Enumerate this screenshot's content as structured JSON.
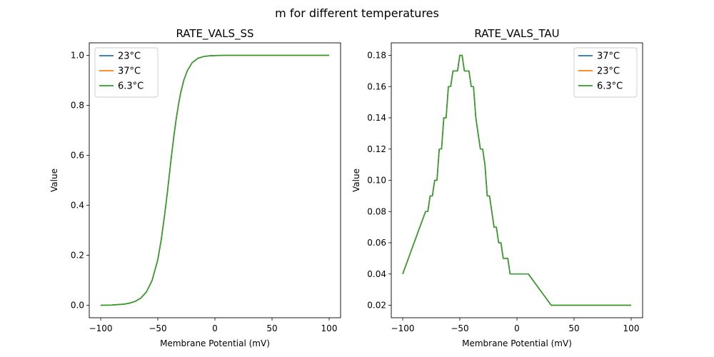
{
  "figure": {
    "suptitle": "m for different temperatures"
  },
  "chart_data": [
    {
      "type": "line",
      "title": "RATE_VALS_SS",
      "xlabel": "Membrane Potential (mV)",
      "ylabel": "Value",
      "xlim": [
        -110,
        110
      ],
      "ylim": [
        -0.05,
        1.05
      ],
      "xticks": [
        -100,
        -50,
        0,
        50,
        100
      ],
      "xtick_labels": [
        "−100",
        "−50",
        "0",
        "50",
        "100"
      ],
      "yticks": [
        0.0,
        0.2,
        0.4,
        0.6,
        0.8,
        1.0
      ],
      "ytick_labels": [
        "0.0",
        "0.2",
        "0.4",
        "0.6",
        "0.8",
        "1.0"
      ],
      "grid": false,
      "legend_position": "upper-left",
      "x": [
        -100,
        -90,
        -80,
        -75,
        -70,
        -65,
        -60,
        -55,
        -50,
        -47,
        -44,
        -42,
        -40,
        -38,
        -36,
        -34,
        -32,
        -30,
        -27,
        -24,
        -20,
        -15,
        -10,
        -5,
        0,
        10,
        20,
        30,
        50,
        70,
        100
      ],
      "series": [
        {
          "name": "23°C",
          "color": "#1f77b4",
          "values": [
            0.0,
            0.001,
            0.004,
            0.008,
            0.015,
            0.028,
            0.053,
            0.099,
            0.182,
            0.262,
            0.362,
            0.437,
            0.517,
            0.598,
            0.674,
            0.742,
            0.8,
            0.85,
            0.904,
            0.94,
            0.97,
            0.988,
            0.995,
            0.998,
            0.999,
            1.0,
            1.0,
            1.0,
            1.0,
            1.0,
            1.0
          ]
        },
        {
          "name": "37°C",
          "color": "#ff7f0e",
          "values": [
            0.0,
            0.001,
            0.004,
            0.008,
            0.015,
            0.028,
            0.053,
            0.099,
            0.182,
            0.262,
            0.362,
            0.437,
            0.517,
            0.598,
            0.674,
            0.742,
            0.8,
            0.85,
            0.904,
            0.94,
            0.97,
            0.988,
            0.995,
            0.998,
            0.999,
            1.0,
            1.0,
            1.0,
            1.0,
            1.0,
            1.0
          ]
        },
        {
          "name": "6.3°C",
          "color": "#2ca02c",
          "values": [
            0.0,
            0.001,
            0.004,
            0.008,
            0.015,
            0.028,
            0.053,
            0.099,
            0.182,
            0.262,
            0.362,
            0.437,
            0.517,
            0.598,
            0.674,
            0.742,
            0.8,
            0.85,
            0.904,
            0.94,
            0.97,
            0.988,
            0.995,
            0.998,
            0.999,
            1.0,
            1.0,
            1.0,
            1.0,
            1.0,
            1.0
          ]
        }
      ]
    },
    {
      "type": "line",
      "title": "RATE_VALS_TAU",
      "xlabel": "Membrane Potential (mV)",
      "ylabel": "Value",
      "xlim": [
        -110,
        110
      ],
      "ylim": [
        0.012,
        0.188
      ],
      "xticks": [
        -100,
        -50,
        0,
        50,
        100
      ],
      "xtick_labels": [
        "−100",
        "−50",
        "0",
        "50",
        "100"
      ],
      "yticks": [
        0.02,
        0.04,
        0.06,
        0.08,
        0.1,
        0.12,
        0.14,
        0.16,
        0.18
      ],
      "ytick_labels": [
        "0.02",
        "0.04",
        "0.06",
        "0.08",
        "0.10",
        "0.12",
        "0.14",
        "0.16",
        "0.18"
      ],
      "grid": false,
      "legend_position": "upper-right",
      "x": [
        -100,
        -80,
        -78,
        -76,
        -74,
        -72,
        -70,
        -68,
        -66,
        -64,
        -62,
        -60,
        -58,
        -56,
        -54,
        -52,
        -50,
        -48,
        -46,
        -44,
        -42,
        -40,
        -38,
        -36,
        -34,
        -32,
        -30,
        -28,
        -26,
        -24,
        -22,
        -20,
        -18,
        -16,
        -14,
        -12,
        -10,
        -8,
        -6,
        -4,
        -2,
        0,
        2,
        4,
        6,
        10,
        30,
        50,
        100
      ],
      "series": [
        {
          "name": "37°C",
          "color": "#1f77b4",
          "values": [
            0.04,
            0.08,
            0.08,
            0.09,
            0.09,
            0.1,
            0.1,
            0.12,
            0.12,
            0.14,
            0.14,
            0.16,
            0.16,
            0.17,
            0.17,
            0.17,
            0.18,
            0.18,
            0.17,
            0.17,
            0.17,
            0.16,
            0.16,
            0.14,
            0.13,
            0.12,
            0.12,
            0.11,
            0.09,
            0.09,
            0.08,
            0.07,
            0.07,
            0.06,
            0.06,
            0.05,
            0.05,
            0.05,
            0.04,
            0.04,
            0.04,
            0.04,
            0.04,
            0.04,
            0.04,
            0.04,
            0.02,
            0.02,
            0.02
          ]
        },
        {
          "name": "23°C",
          "color": "#ff7f0e",
          "values": [
            0.04,
            0.08,
            0.08,
            0.09,
            0.09,
            0.1,
            0.1,
            0.12,
            0.12,
            0.14,
            0.14,
            0.16,
            0.16,
            0.17,
            0.17,
            0.17,
            0.18,
            0.18,
            0.17,
            0.17,
            0.17,
            0.16,
            0.16,
            0.14,
            0.13,
            0.12,
            0.12,
            0.11,
            0.09,
            0.09,
            0.08,
            0.07,
            0.07,
            0.06,
            0.06,
            0.05,
            0.05,
            0.05,
            0.04,
            0.04,
            0.04,
            0.04,
            0.04,
            0.04,
            0.04,
            0.04,
            0.02,
            0.02,
            0.02
          ]
        },
        {
          "name": "6.3°C",
          "color": "#2ca02c",
          "values": [
            0.04,
            0.08,
            0.08,
            0.09,
            0.09,
            0.1,
            0.1,
            0.12,
            0.12,
            0.14,
            0.14,
            0.16,
            0.16,
            0.17,
            0.17,
            0.17,
            0.18,
            0.18,
            0.17,
            0.17,
            0.17,
            0.16,
            0.16,
            0.14,
            0.13,
            0.12,
            0.12,
            0.11,
            0.09,
            0.09,
            0.08,
            0.07,
            0.07,
            0.06,
            0.06,
            0.05,
            0.05,
            0.05,
            0.04,
            0.04,
            0.04,
            0.04,
            0.04,
            0.04,
            0.04,
            0.04,
            0.02,
            0.02,
            0.02
          ]
        }
      ]
    }
  ]
}
